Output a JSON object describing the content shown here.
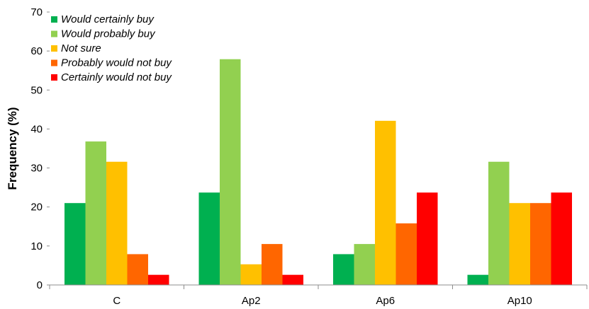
{
  "chart_data": {
    "type": "bar",
    "title": "",
    "xlabel": "",
    "ylabel": "Frequency (%)",
    "ylim": [
      0,
      70
    ],
    "yticks": [
      0,
      10,
      20,
      30,
      40,
      50,
      60,
      70
    ],
    "grid": false,
    "legend_position": "top-left",
    "categories": [
      "C",
      "Ap2",
      "Ap6",
      "Ap10"
    ],
    "series": [
      {
        "name": "Would certainly buy",
        "color": "#00b050",
        "values": [
          21.0,
          23.7,
          7.9,
          2.6
        ]
      },
      {
        "name": "Would probably buy",
        "color": "#92d050",
        "values": [
          36.8,
          57.9,
          10.5,
          31.6
        ]
      },
      {
        "name": "Not sure",
        "color": "#ffc000",
        "values": [
          31.6,
          5.3,
          42.1,
          21.0
        ]
      },
      {
        "name": "Probably would not buy",
        "color": "#ff6600",
        "values": [
          7.9,
          10.5,
          15.8,
          21.0
        ]
      },
      {
        "name": "Certainly would not buy",
        "color": "#ff0000",
        "values": [
          2.6,
          2.6,
          23.7,
          23.7
        ]
      }
    ]
  }
}
